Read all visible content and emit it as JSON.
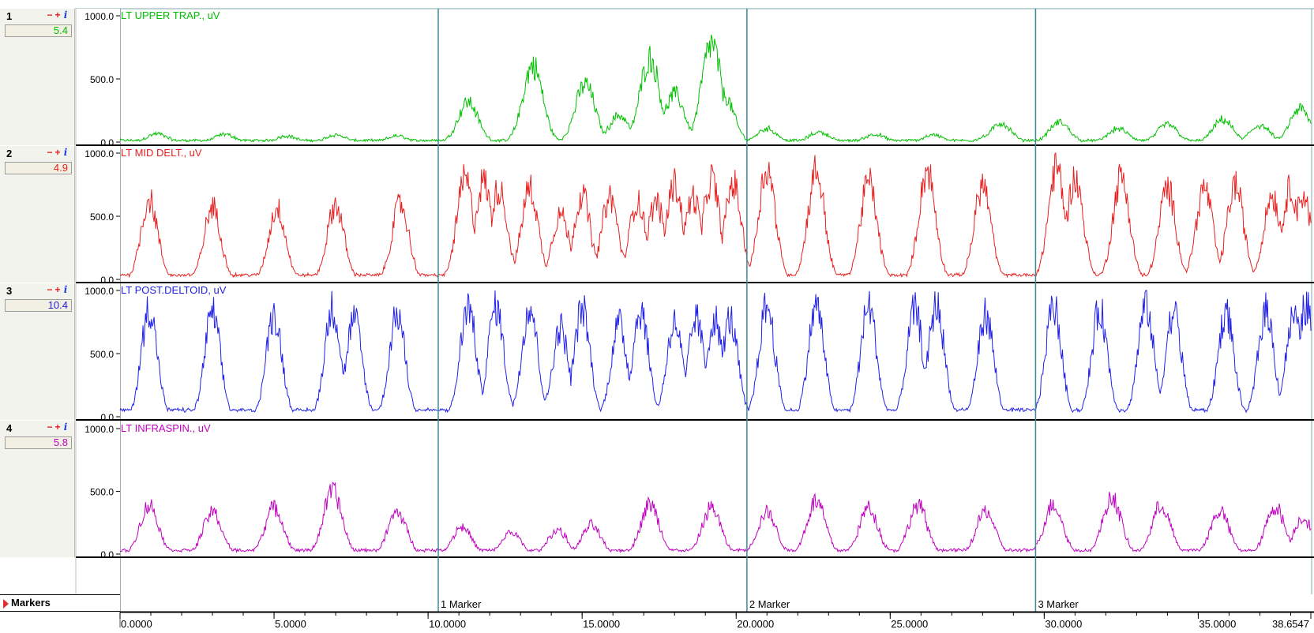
{
  "markers_label": "Markers",
  "channels": [
    {
      "num": "1",
      "value": "5.4",
      "color": "#00c000",
      "label": "LT UPPER TRAP., uV"
    },
    {
      "num": "2",
      "value": "4.9",
      "color": "#e82020",
      "label": "LT MID DELT., uV"
    },
    {
      "num": "3",
      "value": "10.4",
      "color": "#2020e8",
      "label": "LT POST.DELTOID, uV"
    },
    {
      "num": "4",
      "value": "5.8",
      "color": "#c000c0",
      "label": "LT INFRASPIN., uV"
    }
  ],
  "controls": {
    "minus": "−",
    "plus": "+",
    "info": "i"
  },
  "markers": [
    {
      "time": 10.33,
      "label": "1 Marker"
    },
    {
      "time": 20.35,
      "label": "2 Marker"
    },
    {
      "time": 29.72,
      "label": "3 Marker"
    }
  ],
  "chart_data": {
    "type": "line",
    "x_range": [
      0,
      38.6547
    ],
    "y_range": [
      0,
      1000
    ],
    "y_ticks": [
      "1000.0",
      "500.0",
      "0.0"
    ],
    "x_ticks": [
      "0.0000",
      "5.0000",
      "10.0000",
      "15.0000",
      "20.0000",
      "25.0000",
      "30.0000",
      "35.0000",
      "38.6547"
    ],
    "x_tick_values": [
      0,
      5,
      10,
      15,
      20,
      25,
      30,
      35,
      38.6547
    ],
    "grid": false,
    "series": [
      {
        "name": "LT UPPER TRAP., uV",
        "peaks": [
          [
            1.2,
            75
          ],
          [
            3.4,
            70
          ],
          [
            5.4,
            55
          ],
          [
            7.0,
            65
          ],
          [
            9.0,
            55
          ],
          [
            11.3,
            360
          ],
          [
            13.4,
            690
          ],
          [
            15.1,
            520
          ],
          [
            16.2,
            240
          ],
          [
            17.2,
            750
          ],
          [
            18.0,
            430
          ],
          [
            19.2,
            880
          ],
          [
            19.6,
            420
          ],
          [
            21.0,
            120
          ],
          [
            22.7,
            90
          ],
          [
            24.5,
            70
          ],
          [
            26.4,
            65
          ],
          [
            28.2,
            55
          ],
          [
            28.6,
            170
          ],
          [
            30.5,
            180
          ],
          [
            32.4,
            120
          ],
          [
            34.0,
            160
          ],
          [
            35.8,
            200
          ],
          [
            37.0,
            150
          ],
          [
            38.3,
            300
          ]
        ],
        "base": 15,
        "spread": 0.45
      },
      {
        "name": "LT MID DELT., uV",
        "peaks": [
          [
            0.95,
            720
          ],
          [
            3.0,
            650
          ],
          [
            5.1,
            640
          ],
          [
            7.0,
            670
          ],
          [
            9.1,
            680
          ],
          [
            11.2,
            900
          ],
          [
            11.8,
            880
          ],
          [
            12.3,
            820
          ],
          [
            13.3,
            820
          ],
          [
            14.3,
            590
          ],
          [
            15.0,
            760
          ],
          [
            15.9,
            740
          ],
          [
            16.8,
            700
          ],
          [
            17.4,
            700
          ],
          [
            18.0,
            860
          ],
          [
            18.6,
            740
          ],
          [
            19.2,
            900
          ],
          [
            19.9,
            860
          ],
          [
            21.0,
            1000
          ],
          [
            22.6,
            980
          ],
          [
            24.3,
            880
          ],
          [
            26.2,
            980
          ],
          [
            28.0,
            850
          ],
          [
            30.4,
            1000
          ],
          [
            31.0,
            900
          ],
          [
            32.5,
            920
          ],
          [
            34.0,
            820
          ],
          [
            35.2,
            820
          ],
          [
            36.2,
            850
          ],
          [
            37.4,
            760
          ],
          [
            38.0,
            820
          ],
          [
            38.4,
            760
          ]
        ],
        "base": 40,
        "spread": 0.38
      },
      {
        "name": "LT POST.DELTOID, uV",
        "peaks": [
          [
            0.95,
            980
          ],
          [
            3.0,
            930
          ],
          [
            5.0,
            920
          ],
          [
            6.9,
            980
          ],
          [
            7.6,
            880
          ],
          [
            9.0,
            930
          ],
          [
            11.3,
            1000
          ],
          [
            12.2,
            1000
          ],
          [
            13.3,
            1000
          ],
          [
            14.3,
            800
          ],
          [
            15.0,
            970
          ],
          [
            16.2,
            840
          ],
          [
            16.9,
            960
          ],
          [
            18.0,
            850
          ],
          [
            18.7,
            880
          ],
          [
            19.3,
            880
          ],
          [
            19.8,
            880
          ],
          [
            21.0,
            1000
          ],
          [
            22.6,
            1000
          ],
          [
            24.3,
            1000
          ],
          [
            25.8,
            960
          ],
          [
            26.5,
            1000
          ],
          [
            28.1,
            920
          ],
          [
            30.3,
            1000
          ],
          [
            31.8,
            960
          ],
          [
            33.3,
            1000
          ],
          [
            34.2,
            940
          ],
          [
            35.9,
            940
          ],
          [
            37.2,
            960
          ],
          [
            38.1,
            900
          ],
          [
            38.5,
            1000
          ]
        ],
        "base": 60,
        "spread": 0.36
      },
      {
        "name": "LT INFRASPIN., uV",
        "peaks": [
          [
            0.95,
            440
          ],
          [
            3.0,
            380
          ],
          [
            5.0,
            420
          ],
          [
            6.9,
            570
          ],
          [
            9.0,
            380
          ],
          [
            11.1,
            250
          ],
          [
            12.7,
            200
          ],
          [
            14.2,
            220
          ],
          [
            15.3,
            260
          ],
          [
            17.2,
            450
          ],
          [
            19.2,
            420
          ],
          [
            21.0,
            380
          ],
          [
            22.6,
            480
          ],
          [
            24.3,
            420
          ],
          [
            25.9,
            440
          ],
          [
            28.1,
            390
          ],
          [
            30.3,
            450
          ],
          [
            32.2,
            510
          ],
          [
            33.8,
            440
          ],
          [
            35.7,
            390
          ],
          [
            37.5,
            430
          ],
          [
            38.4,
            330
          ]
        ],
        "base": 35,
        "spread": 0.42
      }
    ]
  }
}
